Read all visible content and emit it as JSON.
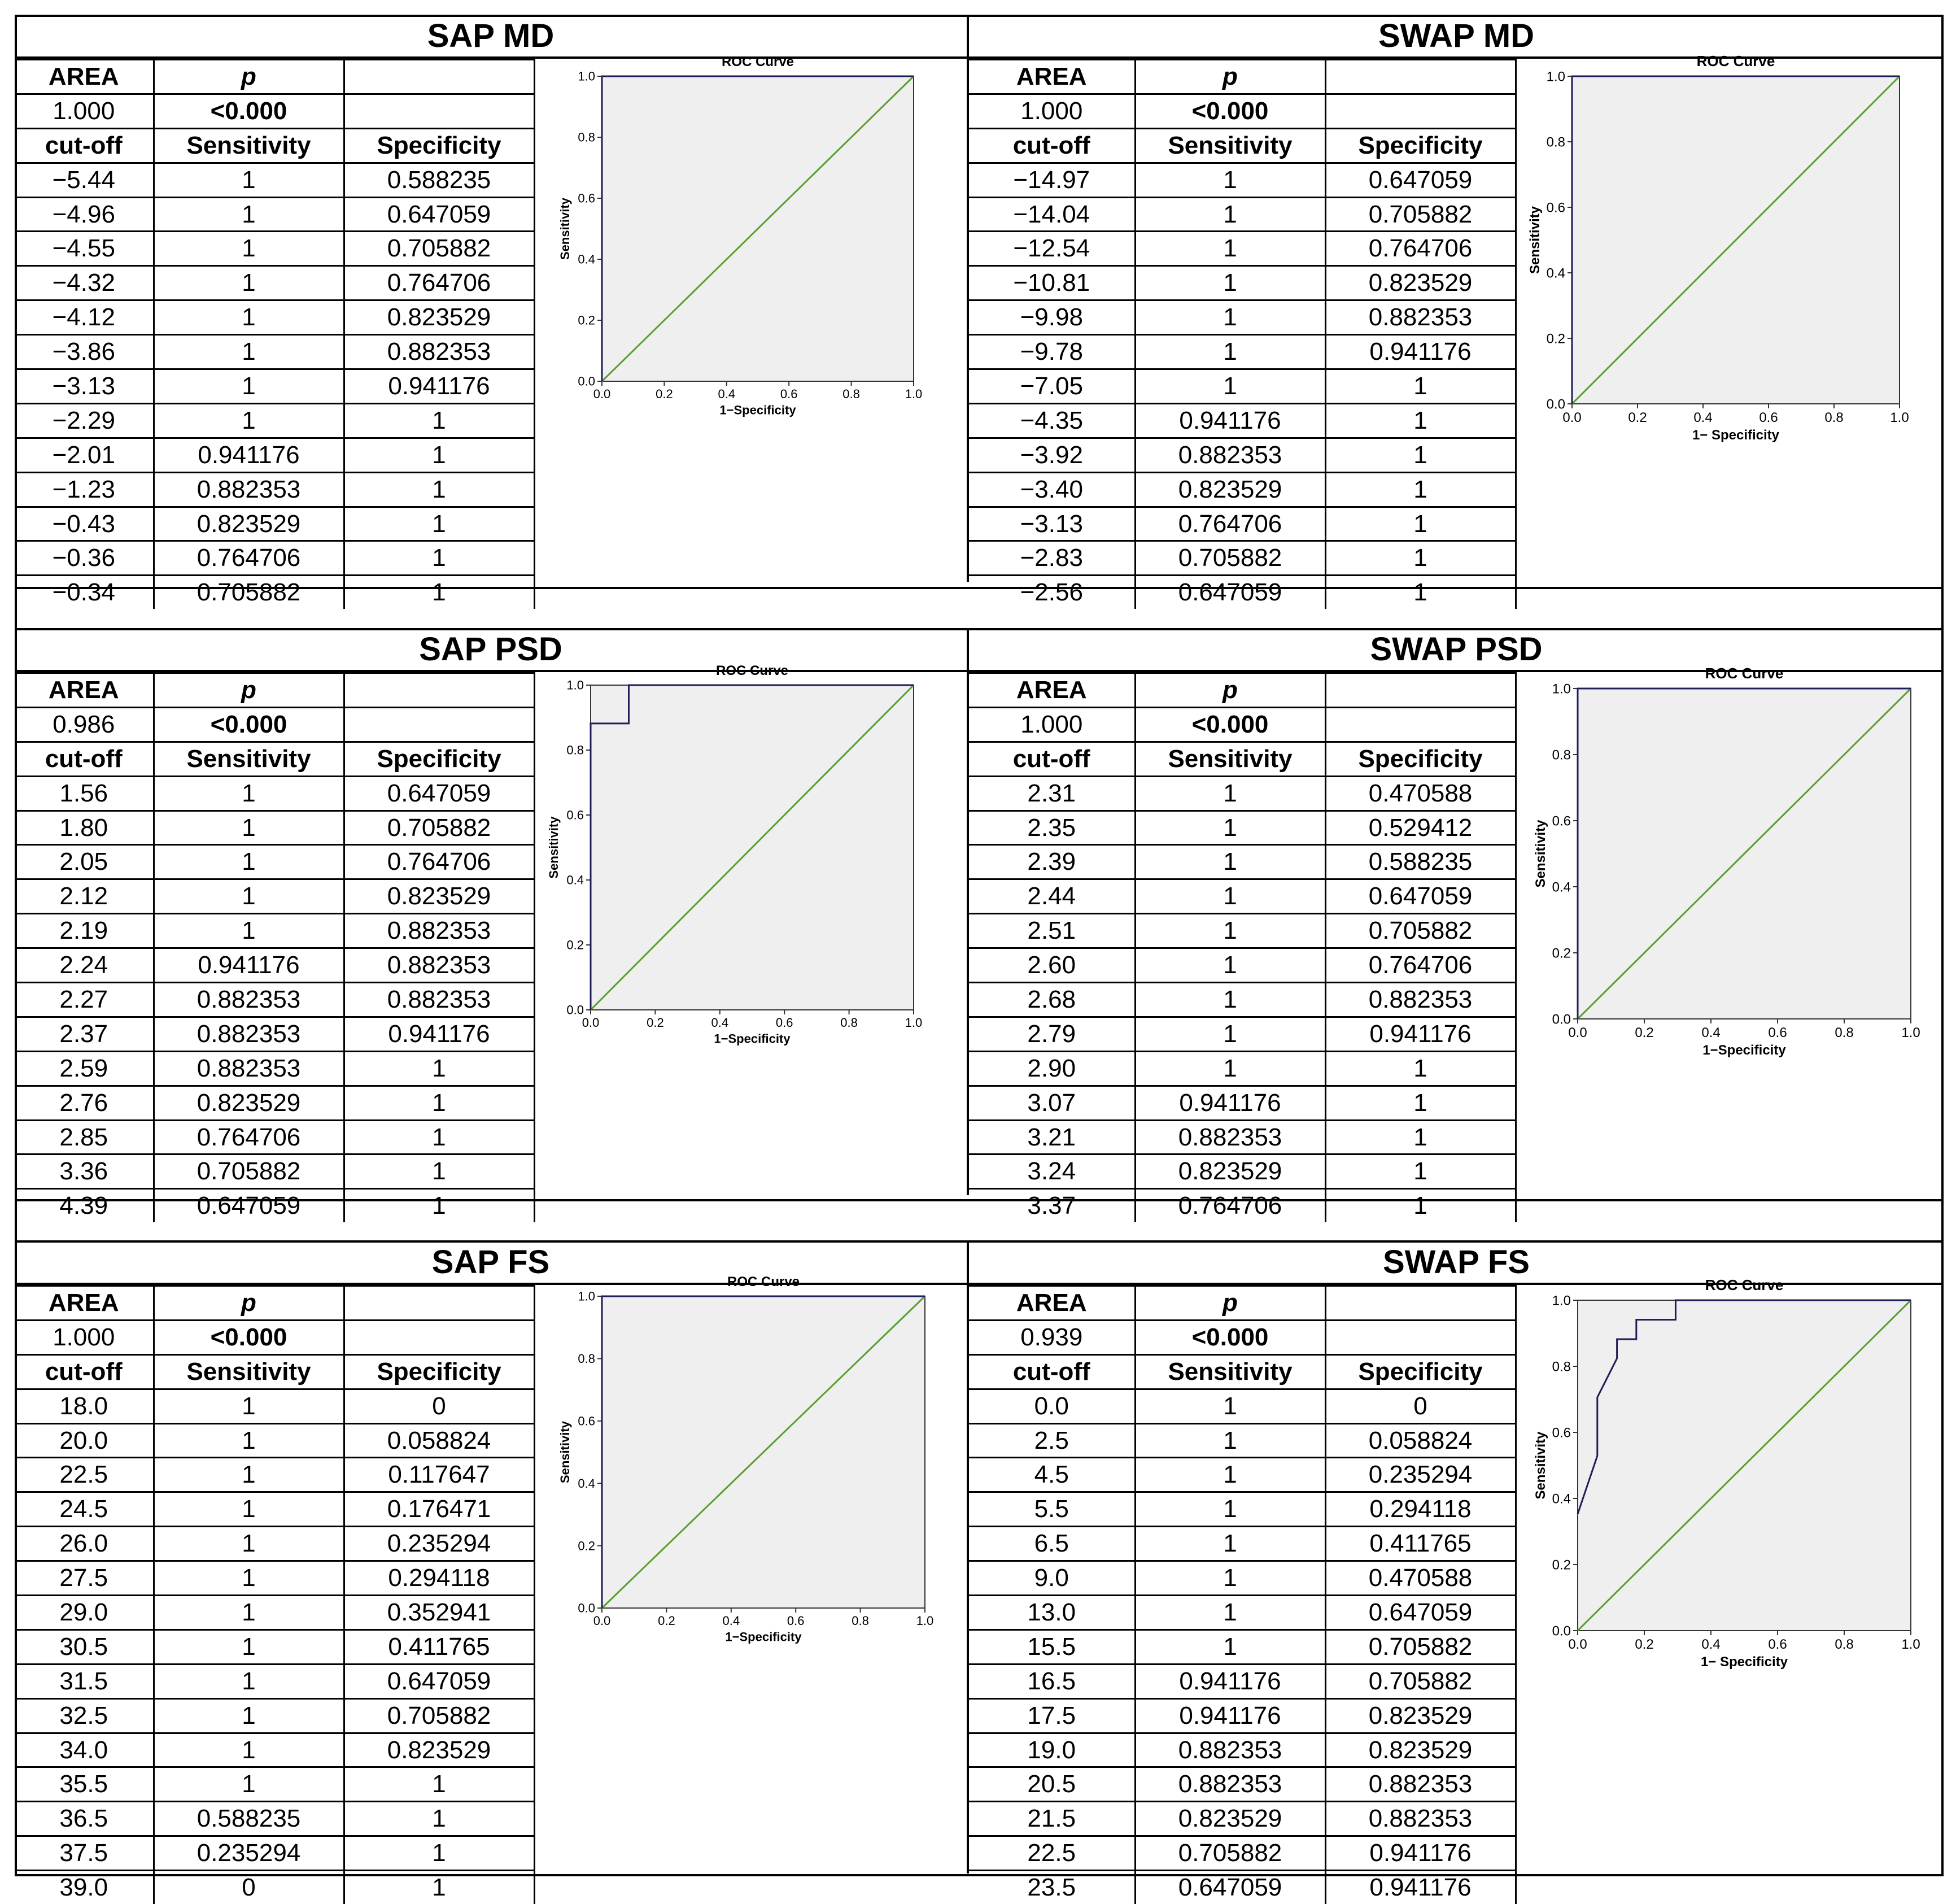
{
  "chart_data": [
    {
      "id": "sap_md",
      "type": "table",
      "title": "SAP MD",
      "area_label": "AREA",
      "p_label": "p",
      "area": "1.000",
      "p": "<0.000",
      "columns": [
        "cut-off",
        "Sensitivity",
        "Specificity"
      ],
      "rows": [
        [
          "−5.44",
          "1",
          "0.588235"
        ],
        [
          "−4.96",
          "1",
          "0.647059"
        ],
        [
          "−4.55",
          "1",
          "0.705882"
        ],
        [
          "−4.32",
          "1",
          "0.764706"
        ],
        [
          "−4.12",
          "1",
          "0.823529"
        ],
        [
          "−3.86",
          "1",
          "0.882353"
        ],
        [
          "−3.13",
          "1",
          "0.941176"
        ],
        [
          "−2.29",
          "1",
          "1"
        ],
        [
          "−2.01",
          "0.941176",
          "1"
        ],
        [
          "−1.23",
          "0.882353",
          "1"
        ],
        [
          "−0.43",
          "0.823529",
          "1"
        ],
        [
          "−0.36",
          "0.764706",
          "1"
        ],
        [
          "−0.34",
          "0.705882",
          "1"
        ]
      ],
      "roc": {
        "type": "line",
        "title": "ROC Curve",
        "xlabel": "1−Specificity",
        "ylabel": "Sensitivity",
        "xlim": [
          0,
          1
        ],
        "ylim": [
          0,
          1
        ],
        "ticks": [
          "0.0",
          "0.2",
          "0.4",
          "0.6",
          "0.8",
          "1.0"
        ],
        "curve": [
          [
            0,
            0
          ],
          [
            0,
            1
          ],
          [
            1,
            1
          ]
        ]
      }
    },
    {
      "id": "swap_md",
      "type": "table",
      "title": "SWAP MD",
      "area_label": "AREA",
      "p_label": "p",
      "area": "1.000",
      "p": "<0.000",
      "columns": [
        "cut-off",
        "Sensitivity",
        "Specificity"
      ],
      "rows": [
        [
          "−14.97",
          "1",
          "0.647059"
        ],
        [
          "−14.04",
          "1",
          "0.705882"
        ],
        [
          "−12.54",
          "1",
          "0.764706"
        ],
        [
          "−10.81",
          "1",
          "0.823529"
        ],
        [
          "−9.98",
          "1",
          "0.882353"
        ],
        [
          "−9.78",
          "1",
          "0.941176"
        ],
        [
          "−7.05",
          "1",
          "1"
        ],
        [
          "−4.35",
          "0.941176",
          "1"
        ],
        [
          "−3.92",
          "0.882353",
          "1"
        ],
        [
          "−3.40",
          "0.823529",
          "1"
        ],
        [
          "−3.13",
          "0.764706",
          "1"
        ],
        [
          "−2.83",
          "0.705882",
          "1"
        ],
        [
          "−2.56",
          "0.647059",
          "1"
        ]
      ],
      "roc": {
        "type": "line",
        "title": "ROC Curve",
        "xlabel": "1− Specificity",
        "ylabel": "Sensitivity",
        "xlim": [
          0,
          1
        ],
        "ylim": [
          0,
          1
        ],
        "ticks": [
          "0.0",
          "0.2",
          "0.4",
          "0.6",
          "0.8",
          "1.0"
        ],
        "curve": [
          [
            0,
            0
          ],
          [
            0,
            1
          ],
          [
            1,
            1
          ]
        ]
      }
    },
    {
      "id": "sap_psd",
      "type": "table",
      "title": "SAP PSD",
      "area_label": "AREA",
      "p_label": "p",
      "area": "0.986",
      "p": "<0.000",
      "columns": [
        "cut-off",
        "Sensitivity",
        "Specificity"
      ],
      "rows": [
        [
          "1.56",
          "1",
          "0.647059"
        ],
        [
          "1.80",
          "1",
          "0.705882"
        ],
        [
          "2.05",
          "1",
          "0.764706"
        ],
        [
          "2.12",
          "1",
          "0.823529"
        ],
        [
          "2.19",
          "1",
          "0.882353"
        ],
        [
          "2.24",
          "0.941176",
          "0.882353"
        ],
        [
          "2.27",
          "0.882353",
          "0.882353"
        ],
        [
          "2.37",
          "0.882353",
          "0.941176"
        ],
        [
          "2.59",
          "0.882353",
          "1"
        ],
        [
          "2.76",
          "0.823529",
          "1"
        ],
        [
          "2.85",
          "0.764706",
          "1"
        ],
        [
          "3.36",
          "0.705882",
          "1"
        ],
        [
          "4.39",
          "0.647059",
          "1"
        ]
      ],
      "roc": {
        "type": "line",
        "title": "ROC Curve",
        "xlabel": "1−Specificity",
        "ylabel": "Sensitivity",
        "xlim": [
          0,
          1
        ],
        "ylim": [
          0,
          1
        ],
        "ticks": [
          "0.0",
          "0.2",
          "0.4",
          "0.6",
          "0.8",
          "1.0"
        ],
        "curve": [
          [
            0,
            0
          ],
          [
            0,
            0.882
          ],
          [
            0.118,
            0.882
          ],
          [
            0.118,
            1
          ],
          [
            1,
            1
          ]
        ]
      }
    },
    {
      "id": "swap_psd",
      "type": "table",
      "title": "SWAP PSD",
      "area_label": "AREA",
      "p_label": "p",
      "area": "1.000",
      "p": "<0.000",
      "columns": [
        "cut-off",
        "Sensitivity",
        "Specificity"
      ],
      "rows": [
        [
          "2.31",
          "1",
          "0.470588"
        ],
        [
          "2.35",
          "1",
          "0.529412"
        ],
        [
          "2.39",
          "1",
          "0.588235"
        ],
        [
          "2.44",
          "1",
          "0.647059"
        ],
        [
          "2.51",
          "1",
          "0.705882"
        ],
        [
          "2.60",
          "1",
          "0.764706"
        ],
        [
          "2.68",
          "1",
          "0.882353"
        ],
        [
          "2.79",
          "1",
          "0.941176"
        ],
        [
          "2.90",
          "1",
          "1"
        ],
        [
          "3.07",
          "0.941176",
          "1"
        ],
        [
          "3.21",
          "0.882353",
          "1"
        ],
        [
          "3.24",
          "0.823529",
          "1"
        ],
        [
          "3.37",
          "0.764706",
          "1"
        ]
      ],
      "roc": {
        "type": "line",
        "title": "ROC Curve",
        "xlabel": "1−Specificity",
        "ylabel": "Sensitivity",
        "xlim": [
          0,
          1
        ],
        "ylim": [
          0,
          1
        ],
        "ticks": [
          "0.0",
          "0.2",
          "0.4",
          "0.6",
          "0.8",
          "1.0"
        ],
        "curve": [
          [
            0,
            0
          ],
          [
            0,
            1
          ],
          [
            1,
            1
          ]
        ]
      }
    },
    {
      "id": "sap_fs",
      "type": "table",
      "title": "SAP FS",
      "area_label": "AREA",
      "p_label": "p",
      "area": "1.000",
      "p": "<0.000",
      "columns": [
        "cut-off",
        "Sensitivity",
        "Specificity"
      ],
      "rows": [
        [
          "18.0",
          "1",
          "0"
        ],
        [
          "20.0",
          "1",
          "0.058824"
        ],
        [
          "22.5",
          "1",
          "0.117647"
        ],
        [
          "24.5",
          "1",
          "0.176471"
        ],
        [
          "26.0",
          "1",
          "0.235294"
        ],
        [
          "27.5",
          "1",
          "0.294118"
        ],
        [
          "29.0",
          "1",
          "0.352941"
        ],
        [
          "30.5",
          "1",
          "0.411765"
        ],
        [
          "31.5",
          "1",
          "0.647059"
        ],
        [
          "32.5",
          "1",
          "0.705882"
        ],
        [
          "34.0",
          "1",
          "0.823529"
        ],
        [
          "35.5",
          "1",
          "1"
        ],
        [
          "36.5",
          "0.588235",
          "1"
        ],
        [
          "37.5",
          "0.235294",
          "1"
        ],
        [
          "39.0",
          "0",
          "1"
        ]
      ],
      "roc": {
        "type": "line",
        "title": "ROC Curve",
        "xlabel": "1−Specificity",
        "ylabel": "Sensitivity",
        "xlim": [
          0,
          1
        ],
        "ylim": [
          0,
          1
        ],
        "ticks": [
          "0.0",
          "0.2",
          "0.4",
          "0.6",
          "0.8",
          "1.0"
        ],
        "curve": [
          [
            0,
            0
          ],
          [
            0,
            1
          ],
          [
            1,
            1
          ]
        ]
      }
    },
    {
      "id": "swap_fs",
      "type": "table",
      "title": "SWAP FS",
      "area_label": "AREA",
      "p_label": "p",
      "area": "0.939",
      "p": "<0.000",
      "columns": [
        "cut-off",
        "Sensitivity",
        "Specificity"
      ],
      "rows": [
        [
          "0.0",
          "1",
          "0"
        ],
        [
          "2.5",
          "1",
          "0.058824"
        ],
        [
          "4.5",
          "1",
          "0.235294"
        ],
        [
          "5.5",
          "1",
          "0.294118"
        ],
        [
          "6.5",
          "1",
          "0.411765"
        ],
        [
          "9.0",
          "1",
          "0.470588"
        ],
        [
          "13.0",
          "1",
          "0.647059"
        ],
        [
          "15.5",
          "1",
          "0.705882"
        ],
        [
          "16.5",
          "0.941176",
          "0.705882"
        ],
        [
          "17.5",
          "0.941176",
          "0.823529"
        ],
        [
          "19.0",
          "0.882353",
          "0.823529"
        ],
        [
          "20.5",
          "0.882353",
          "0.882353"
        ],
        [
          "21.5",
          "0.823529",
          "0.882353"
        ],
        [
          "22.5",
          "0.705882",
          "0.941176"
        ],
        [
          "23.5",
          "0.647059",
          "0.941176"
        ]
      ],
      "roc": {
        "type": "line",
        "title": "ROC Curve",
        "xlabel": "1− Specificity",
        "ylabel": "Sensitivity",
        "xlim": [
          0,
          1
        ],
        "ylim": [
          0,
          1
        ],
        "ticks": [
          "0.0",
          "0.2",
          "0.4",
          "0.6",
          "0.8",
          "1.0"
        ],
        "curve": [
          [
            0,
            0.353
          ],
          [
            0,
            0.353
          ],
          [
            0.059,
            0.529
          ],
          [
            0.059,
            0.706
          ],
          [
            0.118,
            0.824
          ],
          [
            0.118,
            0.882
          ],
          [
            0.176,
            0.882
          ],
          [
            0.176,
            0.941
          ],
          [
            0.294,
            0.941
          ],
          [
            0.294,
            1
          ],
          [
            1,
            1
          ]
        ]
      }
    }
  ],
  "colors": {
    "curve": "#1e1e5a",
    "diagonal": "#58a02e",
    "panel": "#efefef",
    "border": "#000000"
  }
}
